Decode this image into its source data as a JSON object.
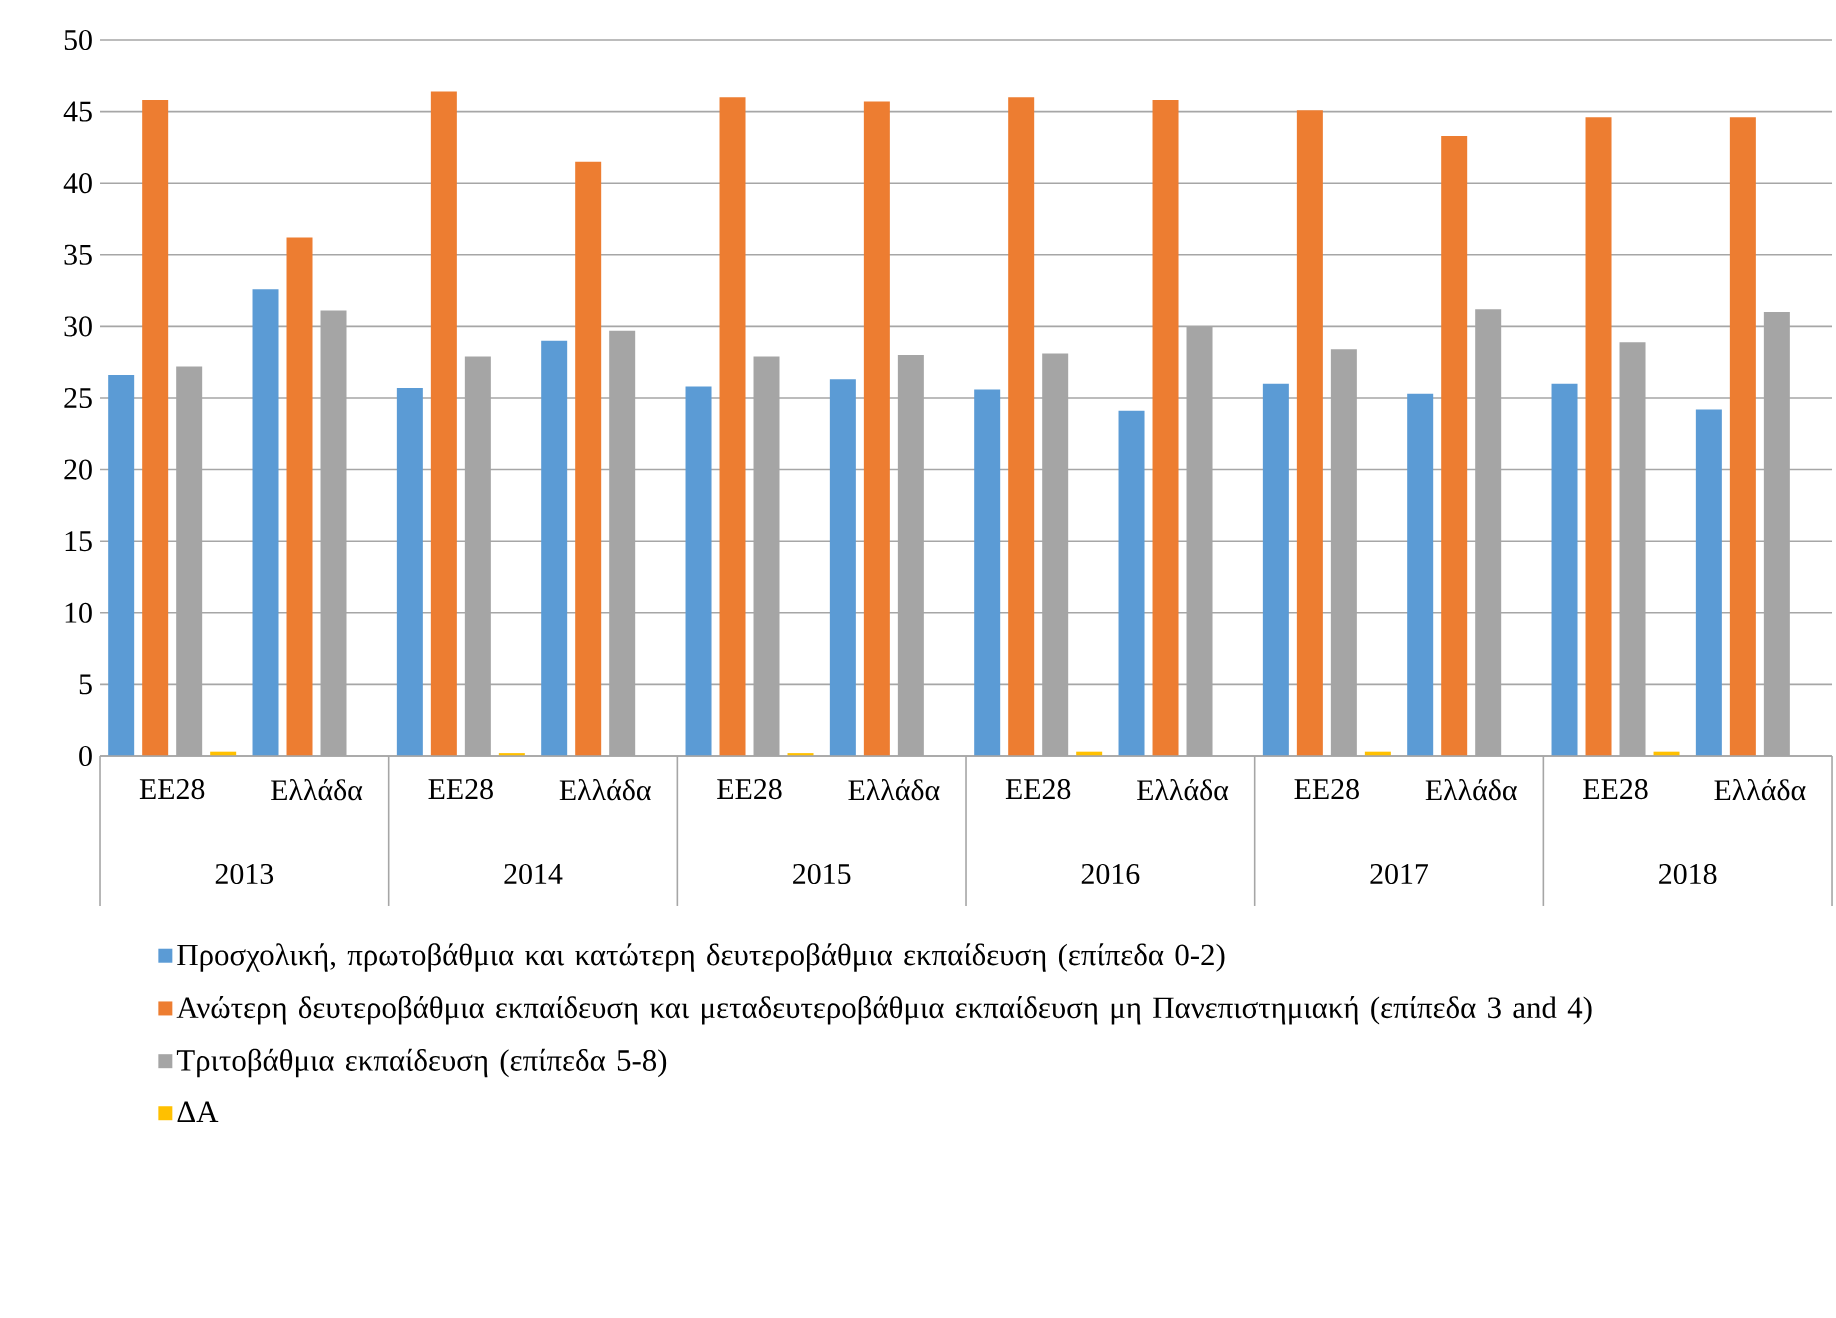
{
  "chart_data": {
    "type": "bar",
    "categories": [
      "ΕΕ28",
      "Ελλάδα",
      "ΕΕ28",
      "Ελλάδα",
      "ΕΕ28",
      "Ελλάδα",
      "ΕΕ28",
      "Ελλάδα",
      "ΕΕ28",
      "Ελλάδα",
      "ΕΕ28",
      "Ελλάδα"
    ],
    "annotations": [
      "2013",
      "2014",
      "2015",
      "2016",
      "2017",
      "2018"
    ],
    "series": [
      {
        "name": "Προσχολική, πρωτοβάθμια και κατώτερη δευτεροβάθμια εκπαίδευση (επίπεδα 0-2)",
        "color": "#5b9bd5",
        "values": [
          26.6,
          32.6,
          25.7,
          29.0,
          25.8,
          26.3,
          25.6,
          24.1,
          26.0,
          25.3,
          26.0,
          24.2
        ]
      },
      {
        "name": "Ανώτερη δευτεροβάθμια εκπαίδευση και μεταδευτεροβάθμια εκπαίδευση μη Πανεπιστημιακή (επίπεδα 3 and 4)",
        "color": "#ed7d31",
        "values": [
          45.8,
          36.2,
          46.4,
          41.5,
          46.0,
          45.7,
          46.0,
          45.8,
          45.1,
          43.3,
          44.6,
          44.6
        ]
      },
      {
        "name": "Τριτοβάθμια εκπαίδευση (επίπεδα 5-8)",
        "color": "#a5a5a5",
        "values": [
          27.2,
          31.1,
          27.9,
          29.7,
          27.9,
          28.0,
          28.1,
          30.0,
          28.4,
          31.2,
          28.9,
          31.0
        ]
      },
      {
        "name": "ΔΑ",
        "color": "#ffc000",
        "values": [
          0.3,
          null,
          0.2,
          null,
          0.2,
          null,
          0.3,
          null,
          0.3,
          null,
          0.3,
          null
        ]
      }
    ],
    "ylim": [
      0,
      50
    ],
    "yticks": [
      0,
      5,
      10,
      15,
      20,
      25,
      30,
      35,
      40,
      45,
      50
    ],
    "grid": "y",
    "legend": "bottom"
  }
}
